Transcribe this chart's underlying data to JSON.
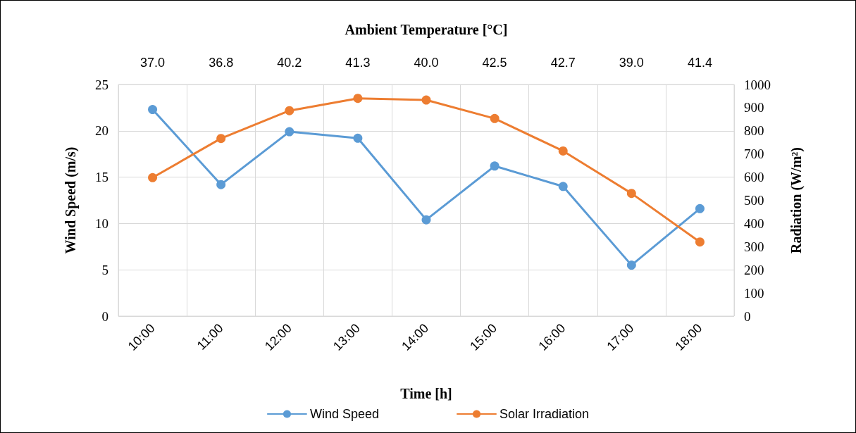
{
  "chart_data": {
    "type": "line",
    "categories": [
      "10:00",
      "11:00",
      "12:00",
      "13:00",
      "14:00",
      "15:00",
      "16:00",
      "17:00",
      "18:00"
    ],
    "series": [
      {
        "name": "Wind Speed",
        "color": "#5b9bd5",
        "values": [
          22.3,
          14.2,
          19.9,
          19.2,
          10.4,
          16.2,
          14.0,
          5.5,
          11.6
        ]
      },
      {
        "name": "Solar Irradiation",
        "color": "#ed7d31",
        "axis": "y2",
        "values": [
          598,
          767,
          887,
          940,
          933,
          853,
          713,
          530,
          320
        ]
      }
    ],
    "xlabel": "Time [h]",
    "ylabel": "Wind Speed (m/s)",
    "y2label": "Radiation (W/m²)",
    "x2label": "Ambient Temperature [°C]",
    "annotations": [
      "37.0",
      "36.8",
      "40.2",
      "41.3",
      "40.0",
      "42.5",
      "42.7",
      "39.0",
      "41.4"
    ],
    "ylim": [
      0,
      25
    ],
    "yticks": [
      0,
      5,
      10,
      15,
      20,
      25
    ],
    "y2lim": [
      0,
      1000
    ],
    "y2ticks": [
      0,
      100,
      200,
      300,
      400,
      500,
      600,
      700,
      800,
      900,
      1000
    ],
    "grid": true,
    "legend": "bottom",
    "marker": "circle",
    "line_style": "solid"
  }
}
